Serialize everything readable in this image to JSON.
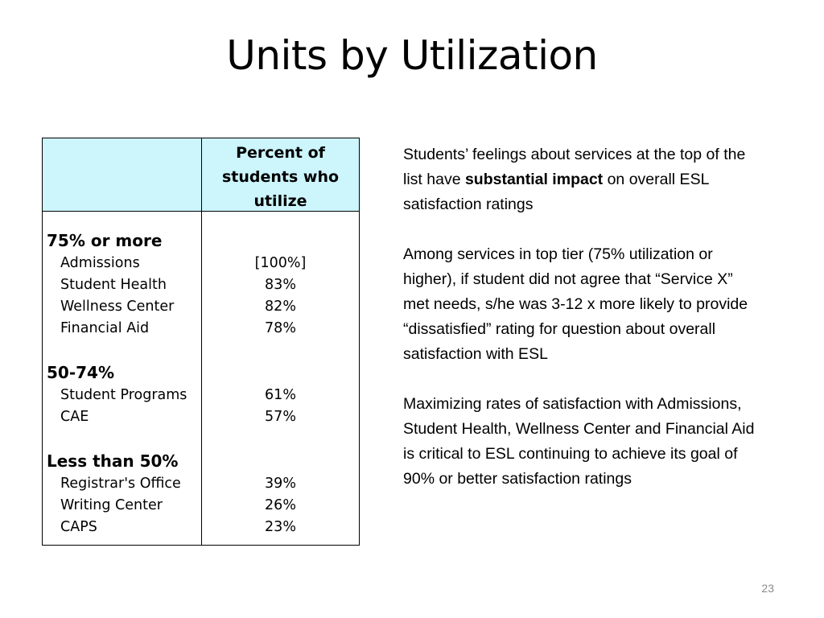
{
  "slide": {
    "title": "Units by Utilization",
    "page_number": "23"
  },
  "table": {
    "header_line1": "Percent of",
    "header_line2": "students who",
    "header_line3": "utilize",
    "groups": [
      {
        "label": "75% or more",
        "rows": [
          {
            "name": "Admissions",
            "percent": "[100%]"
          },
          {
            "name": "Student Health",
            "percent": "83%"
          },
          {
            "name": "Wellness Center",
            "percent": "82%"
          },
          {
            "name": "Financial Aid",
            "percent": "78%"
          }
        ]
      },
      {
        "label": "50-74%",
        "rows": [
          {
            "name": "Student Programs",
            "percent": "61%"
          },
          {
            "name": "CAE",
            "percent": "57%"
          }
        ]
      },
      {
        "label": "Less than 50%",
        "rows": [
          {
            "name": "Registrar's Office",
            "percent": "39%"
          },
          {
            "name": "Writing Center",
            "percent": "26%"
          },
          {
            "name": "CAPS",
            "percent": "23%"
          }
        ]
      }
    ]
  },
  "notes": {
    "p1_before": "Students’ feelings about services at the top of the list have ",
    "p1_bold": "substantial impact",
    "p1_after": " on overall ESL satisfaction ratings",
    "p2": "Among services in top tier (75% utilization or higher), if student did not agree that “Service X” met needs, s/he was 3-12 x more likely to provide “dissatisfied” rating for question about overall satisfaction with ESL",
    "p3": "Maximizing rates of satisfaction with Admissions, Student Health, Wellness Center and Financial Aid is critical to ESL continuing to achieve its goal of 90% or better satisfaction ratings"
  },
  "colors": {
    "header_bg": "#ccf5fc",
    "page_number": "#8a8a8a"
  }
}
